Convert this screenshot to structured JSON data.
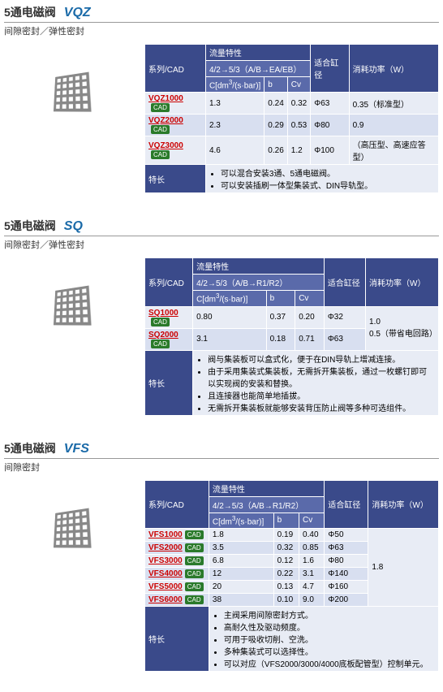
{
  "colors": {
    "hdr": "#3a4a8a",
    "hdr_sub": "#5a6aaa",
    "row_even": "#e8ecf5",
    "row_odd": "#d8dff0",
    "series_red": "#c00",
    "series_blue": "#1a6aa8",
    "cad": "#2a7a2a"
  },
  "labels": {
    "title": "5通电磁阀",
    "subtitle_full": "间隙密封／弹性密封",
    "subtitle_gap": "间隙密封",
    "series_cad": "系列/CAD",
    "flow": "流量特性",
    "bore": "适合缸径",
    "power": "消耗功率（W）",
    "feature": "特长",
    "cad": "CAD"
  },
  "sections": [
    {
      "id": "vqz",
      "series": "VQZ",
      "series_color": "#1a6aa8",
      "subtitle": "间隙密封／弹性密封",
      "flow_header": "4/2→5/3（A/B→EA/EB）",
      "flow_unit": "C[dm³/(s·bar)]",
      "sub_cols": [
        "b",
        "Cv"
      ],
      "rows": [
        {
          "name": "VQZ1000",
          "c": "1.3",
          "b": "0.24",
          "cv": "0.32",
          "bore": "Φ63",
          "power": "0.35（标准型）"
        },
        {
          "name": "VQZ2000",
          "c": "2.3",
          "b": "0.29",
          "cv": "0.53",
          "bore": "Φ80",
          "power": "0.9"
        },
        {
          "name": "VQZ3000",
          "c": "4.6",
          "b": "0.26",
          "cv": "1.2",
          "bore": "Φ100",
          "power": "（高压型、高速应答型）"
        }
      ],
      "features": [
        "可以混合安装3通、5通电磁阀。",
        "可以安装插刷一体型集装式、DIN导轨型。"
      ]
    },
    {
      "id": "sq",
      "series": "SQ",
      "series_color": "#1a6aa8",
      "subtitle": "间隙密封／弹性密封",
      "flow_header": "4/2→5/3（A/B→R1/R2）",
      "flow_unit": "C[dm³/(s·bar)]",
      "sub_cols": [
        "b",
        "Cv"
      ],
      "rows": [
        {
          "name": "SQ1000",
          "c": "0.80",
          "b": "0.37",
          "cv": "0.20",
          "bore": "Φ32",
          "power": "1.0"
        },
        {
          "name": "SQ2000",
          "c": "3.1",
          "b": "0.18",
          "cv": "0.71",
          "bore": "Φ63",
          "power": "0.5（带省电回路）"
        }
      ],
      "features": [
        "阀与集装板可以盒式化，便于在DIN导轨上增减连接。",
        "由于采用集装式集装板，无需拆开集装板，通过一枚螺钉即可以实现阀的安装和替换。",
        "且连接器也能简单地插拔。",
        "无需拆开集装板就能够安装背压防止阀等多种可选组件。"
      ]
    },
    {
      "id": "vfs",
      "series": "VFS",
      "series_color": "#1a6aa8",
      "subtitle": "间隙密封",
      "flow_header": "4/2→5/3（A/B→R1/R2）",
      "flow_unit": "C[dm³/(s·bar)]",
      "sub_cols": [
        "b",
        "Cv"
      ],
      "rows": [
        {
          "name": "VFS1000",
          "c": "1.8",
          "b": "0.19",
          "cv": "0.40",
          "bore": "Φ50",
          "power": ""
        },
        {
          "name": "VFS2000",
          "c": "3.5",
          "b": "0.32",
          "cv": "0.85",
          "bore": "Φ63",
          "power": ""
        },
        {
          "name": "VFS3000",
          "c": "6.8",
          "b": "0.12",
          "cv": "1.6",
          "bore": "Φ80",
          "power": "1.8"
        },
        {
          "name": "VFS4000",
          "c": "12",
          "b": "0.22",
          "cv": "3.1",
          "bore": "Φ140",
          "power": ""
        },
        {
          "name": "VFS5000",
          "c": "20",
          "b": "0.13",
          "cv": "4.7",
          "bore": "Φ160",
          "power": ""
        },
        {
          "name": "VFS6000",
          "c": "38",
          "b": "0.10",
          "cv": "9.0",
          "bore": "Φ200",
          "power": ""
        }
      ],
      "features": [
        "主阀采用间隙密封方式。",
        "高耐久性及驱动频度。",
        "可用于吸收切削、空洗。",
        "多种集装式可以选择性。",
        "可以对应（VFS2000/3000/4000底板配管型）控制单元。"
      ]
    }
  ]
}
